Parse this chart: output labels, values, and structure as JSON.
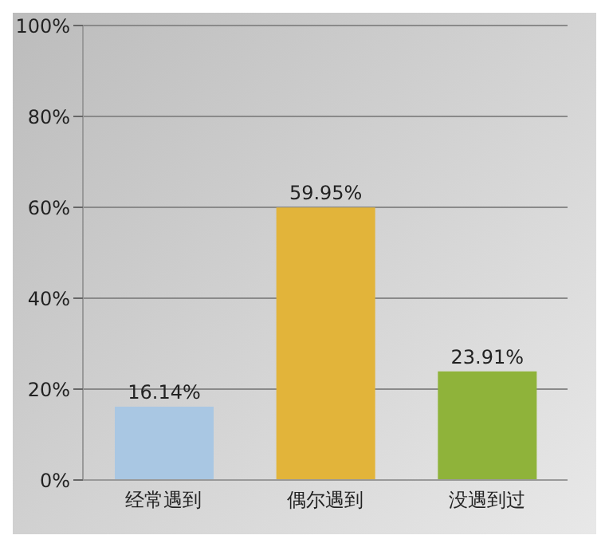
{
  "chart_data": {
    "type": "bar",
    "categories": [
      "经常遇到",
      "偶尔遇到",
      "没遇到过"
    ],
    "values": [
      16.14,
      59.95,
      23.91
    ],
    "colors": [
      "#a9c7e3",
      "#e2b43a",
      "#8fb33a"
    ],
    "value_labels": [
      "16.14%",
      "59.95%",
      "23.91%"
    ],
    "ylim": [
      0,
      100
    ],
    "yticks": [
      {
        "value": 0,
        "label": "0%"
      },
      {
        "value": 20,
        "label": "20%"
      },
      {
        "value": 40,
        "label": "40%"
      },
      {
        "value": 60,
        "label": "60%"
      },
      {
        "value": 80,
        "label": "80%"
      },
      {
        "value": 100,
        "label": "100%"
      }
    ],
    "grid": "y"
  }
}
